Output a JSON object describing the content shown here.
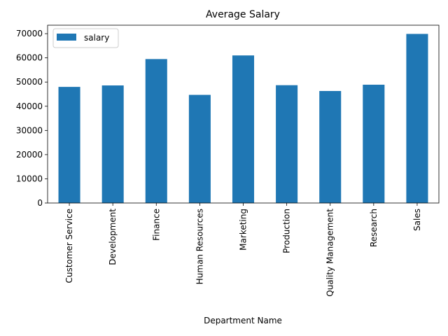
{
  "chart_data": {
    "type": "bar",
    "title": "Average Salary",
    "xlabel": "Department Name",
    "ylabel": "",
    "categories": [
      "Customer Service",
      "Development",
      "Finance",
      "Human Resources",
      "Marketing",
      "Production",
      "Quality Management",
      "Research",
      "Sales"
    ],
    "series": [
      {
        "name": "salary",
        "values": [
          48000,
          48600,
          59500,
          44700,
          61000,
          48700,
          46300,
          48900,
          69900
        ],
        "color": "#1f77b4"
      }
    ],
    "ylim": [
      0,
      73500
    ],
    "yticks": [
      0,
      10000,
      20000,
      30000,
      40000,
      50000,
      60000,
      70000
    ],
    "grid": false,
    "legend": "top-left"
  }
}
